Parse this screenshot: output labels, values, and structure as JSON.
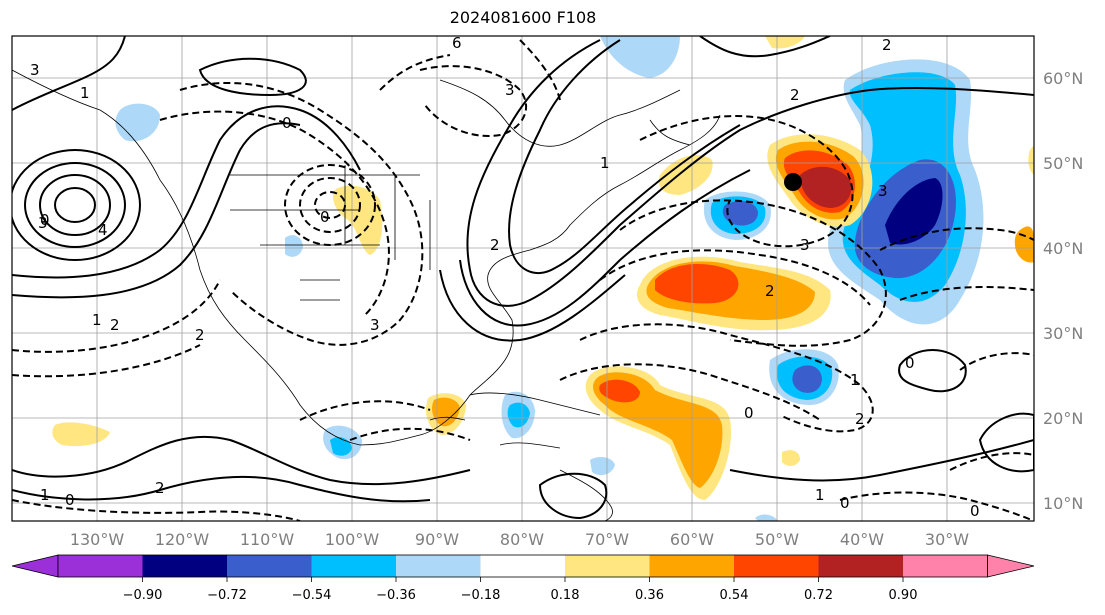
{
  "title": "2024081600 F108",
  "map": {
    "lon_labels": [
      "130°W",
      "120°W",
      "110°W",
      "100°W",
      "90°W",
      "80°W",
      "70°W",
      "60°W",
      "50°W",
      "40°W",
      "30°W"
    ],
    "lat_labels": [
      "60°N",
      "50°N",
      "40°N",
      "30°N",
      "20°N",
      "10°N"
    ],
    "contour_labels": [
      "0",
      "1",
      "2",
      "3",
      "4",
      "0",
      "2",
      "3",
      "1",
      "0",
      "2",
      "3",
      "1",
      "2",
      "3",
      "0",
      "1",
      "2",
      "0",
      "1",
      "2",
      "3",
      "0",
      "1",
      "0",
      "6",
      "2",
      "2",
      "3",
      "0"
    ],
    "marker": "black-dot"
  },
  "colorbar": {
    "ticks": [
      "−0.90",
      "−0.72",
      "−0.54",
      "−0.36",
      "−0.18",
      "0.18",
      "0.36",
      "0.54",
      "0.72",
      "0.90"
    ],
    "colors": [
      "#9b30d9",
      "#000080",
      "#3a5fcd",
      "#00bfff",
      "#add8f8",
      "#ffffff",
      "#ffe680",
      "#ffa500",
      "#ff4500",
      "#b22222",
      "#ff82ab"
    ]
  }
}
